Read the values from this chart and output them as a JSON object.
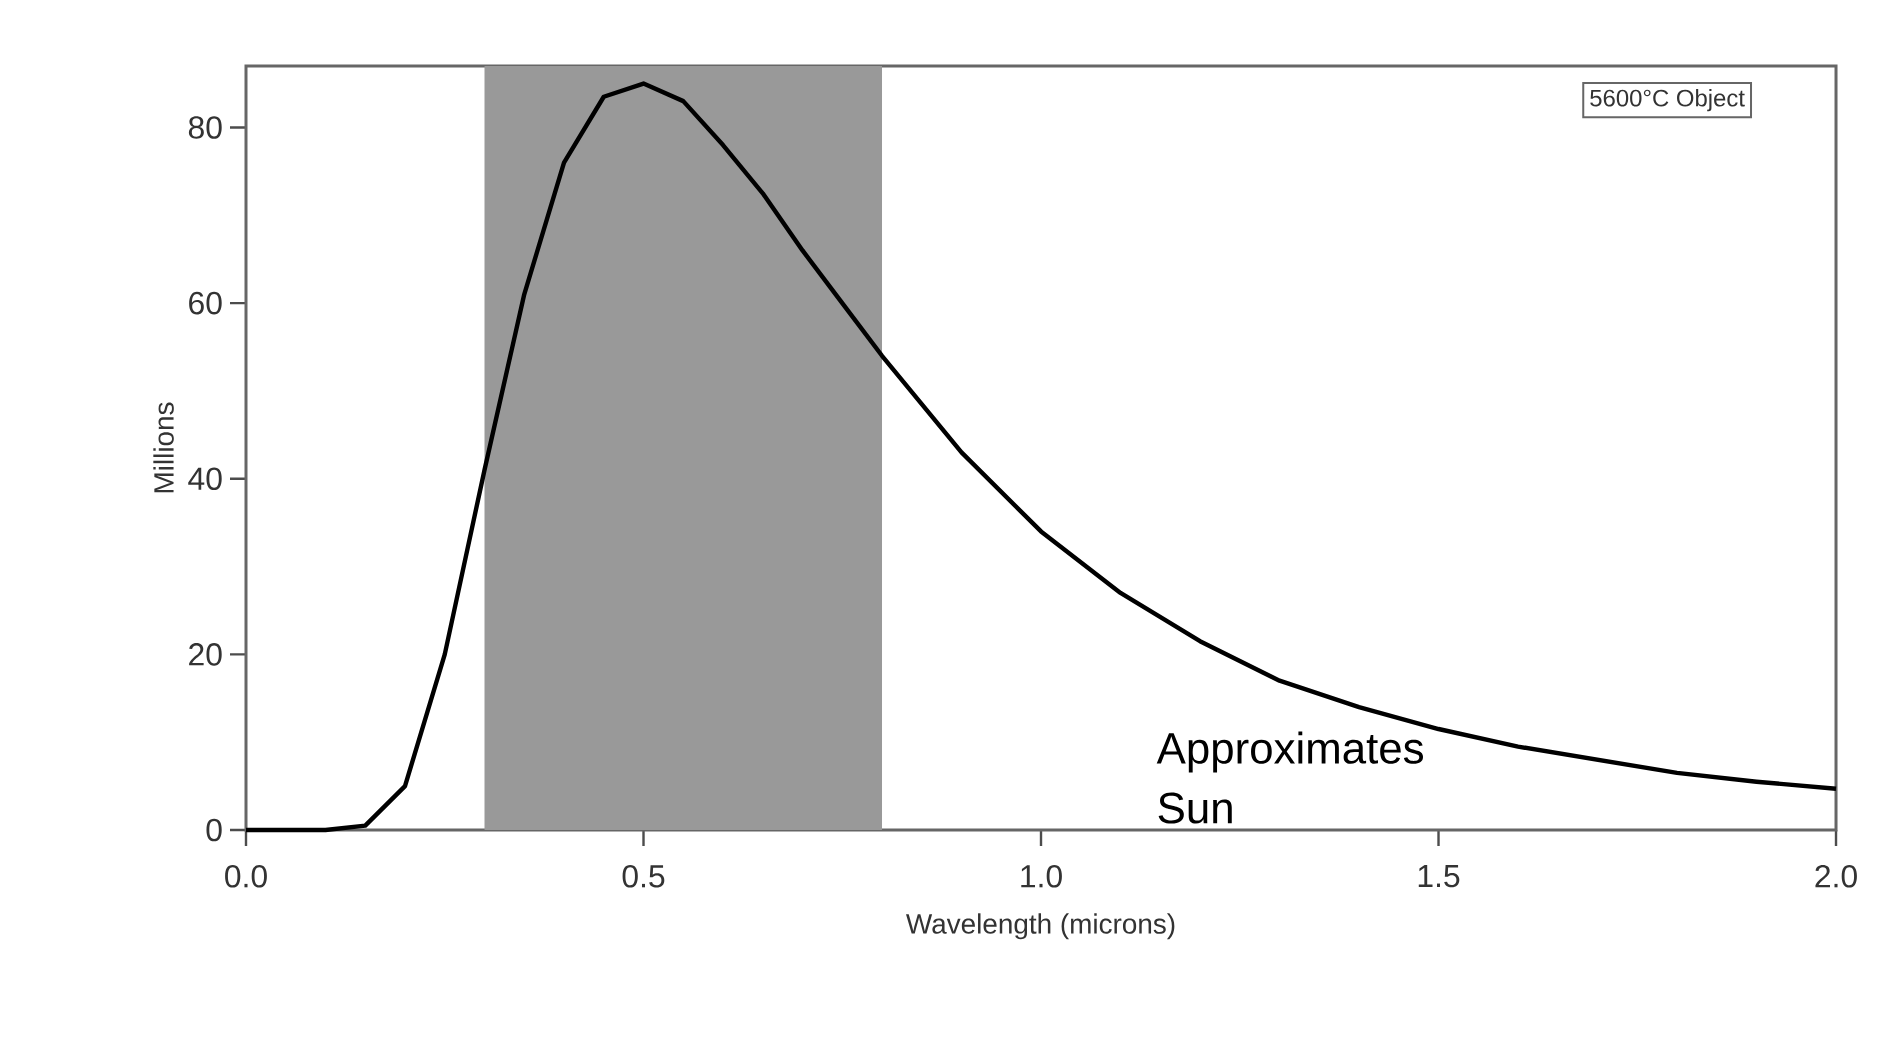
{
  "chart_data": {
    "type": "line",
    "xlabel": "Wavelength (microns)",
    "ylabel": "Millions",
    "x": [
      0.0,
      0.1,
      0.15,
      0.2,
      0.25,
      0.3,
      0.35,
      0.4,
      0.45,
      0.5,
      0.55,
      0.6,
      0.65,
      0.7,
      0.75,
      0.8,
      0.9,
      1.0,
      1.1,
      1.2,
      1.3,
      1.4,
      1.5,
      1.6,
      1.7,
      1.8,
      1.9,
      2.0
    ],
    "series": [
      {
        "color": "#000000",
        "values": [
          0,
          0,
          0.5,
          5,
          20,
          41,
          61,
          76,
          83.5,
          85,
          83,
          78,
          72.5,
          66,
          60,
          54,
          43,
          34,
          27,
          21.5,
          17,
          14,
          11.5,
          9.5,
          8,
          6.5,
          5.5,
          4.7
        ]
      }
    ],
    "xlim": [
      0,
      2
    ],
    "ylim": [
      0,
      87
    ],
    "xticks": [
      {
        "value": 0,
        "label": "0.0"
      },
      0.5,
      {
        "value": 1,
        "label": "1.0"
      },
      1.5,
      {
        "value": 2,
        "label": "2.0"
      }
    ],
    "yticks": [
      0,
      20,
      40,
      60,
      80
    ],
    "bands": [
      {
        "axis": "x",
        "from": 0.3,
        "to": 0.8,
        "color": "#999999"
      }
    ],
    "annotations": [
      "5600°C Object",
      "Approximates Sun"
    ],
    "grid": false,
    "marker": "none",
    "line_style": "solid"
  }
}
